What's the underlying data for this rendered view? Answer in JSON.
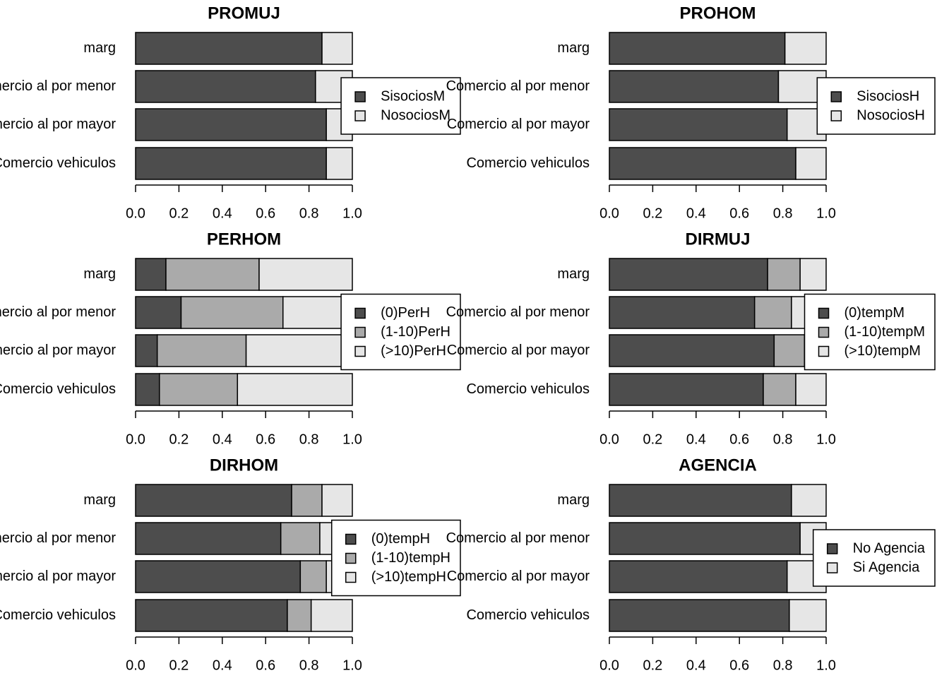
{
  "chart_data": [
    {
      "type": "bar",
      "title": "PROMUJ",
      "categories": [
        "marg",
        "Comercio al por menor",
        "Comercio al por mayor",
        "Comercio vehiculos"
      ],
      "series": [
        {
          "name": "SisociosM",
          "color": "#4d4d4d",
          "values": [
            0.86,
            0.83,
            0.88,
            0.88
          ]
        },
        {
          "name": "NosociosM",
          "color": "#e6e6e6",
          "values": [
            0.14,
            0.17,
            0.12,
            0.12
          ]
        }
      ],
      "xlim": [
        0,
        1
      ],
      "xticks": [
        {
          "value": 0,
          "label": "0.0"
        },
        0.2,
        0.4,
        0.6,
        0.8,
        {
          "value": 1,
          "label": "1.0"
        }
      ]
    },
    {
      "type": "bar",
      "title": "PROHOM",
      "categories": [
        "marg",
        "Comercio al por menor",
        "Comercio al por mayor",
        "Comercio vehiculos"
      ],
      "series": [
        {
          "name": "SisociosH",
          "color": "#4d4d4d",
          "values": [
            0.81,
            0.78,
            0.82,
            0.86
          ]
        },
        {
          "name": "NosociosH",
          "color": "#e6e6e6",
          "values": [
            0.19,
            0.22,
            0.18,
            0.14
          ]
        }
      ],
      "xlim": [
        0,
        1
      ],
      "xticks": [
        {
          "value": 0,
          "label": "0.0"
        },
        0.2,
        0.4,
        0.6,
        0.8,
        {
          "value": 1,
          "label": "1.0"
        }
      ]
    },
    {
      "type": "bar",
      "title": "PERHOM",
      "categories": [
        "marg",
        "Comercio al por menor",
        "Comercio al por mayor",
        "Comercio vehiculos"
      ],
      "series": [
        {
          "name": "(0)PerH",
          "color": "#4d4d4d",
          "values": [
            0.14,
            0.21,
            0.1,
            0.11
          ]
        },
        {
          "name": "(1-10)PerH",
          "color": "#aaaaaa",
          "values": [
            0.43,
            0.47,
            0.41,
            0.36
          ]
        },
        {
          "name": "(>10)PerH",
          "color": "#e6e6e6",
          "values": [
            0.43,
            0.32,
            0.49,
            0.53
          ]
        }
      ],
      "xlim": [
        0,
        1
      ],
      "xticks": [
        {
          "value": 0,
          "label": "0.0"
        },
        0.2,
        0.4,
        0.6,
        0.8,
        {
          "value": 1,
          "label": "1.0"
        }
      ]
    },
    {
      "type": "bar",
      "title": "DIRMUJ",
      "categories": [
        "marg",
        "Comercio al por menor",
        "Comercio al por mayor",
        "Comercio vehiculos"
      ],
      "series": [
        {
          "name": "(0)tempM",
          "color": "#4d4d4d",
          "values": [
            0.73,
            0.67,
            0.76,
            0.71
          ]
        },
        {
          "name": "(1-10)tempM",
          "color": "#aaaaaa",
          "values": [
            0.15,
            0.17,
            0.14,
            0.15
          ]
        },
        {
          "name": "(>10)tempM",
          "color": "#e6e6e6",
          "values": [
            0.12,
            0.16,
            0.1,
            0.14
          ]
        }
      ],
      "xlim": [
        0,
        1
      ],
      "xticks": [
        {
          "value": 0,
          "label": "0.0"
        },
        0.2,
        0.4,
        0.6,
        0.8,
        {
          "value": 1,
          "label": "1.0"
        }
      ]
    },
    {
      "type": "bar",
      "title": "DIRHOM",
      "categories": [
        "marg",
        "Comercio al por menor",
        "Comercio al por mayor",
        "Comercio vehiculos"
      ],
      "series": [
        {
          "name": "(0)tempH",
          "color": "#4d4d4d",
          "values": [
            0.72,
            0.67,
            0.76,
            0.7
          ]
        },
        {
          "name": "(1-10)tempH",
          "color": "#aaaaaa",
          "values": [
            0.14,
            0.18,
            0.12,
            0.11
          ]
        },
        {
          "name": "(>10)tempH",
          "color": "#e6e6e6",
          "values": [
            0.14,
            0.15,
            0.12,
            0.19
          ]
        }
      ],
      "xlim": [
        0,
        1
      ],
      "xticks": [
        {
          "value": 0,
          "label": "0.0"
        },
        0.2,
        0.4,
        0.6,
        0.8,
        {
          "value": 1,
          "label": "1.0"
        }
      ]
    },
    {
      "type": "bar",
      "title": "AGENCIA",
      "categories": [
        "marg",
        "Comercio al por menor",
        "Comercio al por mayor",
        "Comercio vehiculos"
      ],
      "series": [
        {
          "name": "No Agencia",
          "color": "#4d4d4d",
          "values": [
            0.84,
            0.88,
            0.82,
            0.83
          ]
        },
        {
          "name": "Si Agencia",
          "color": "#e6e6e6",
          "values": [
            0.16,
            0.12,
            0.18,
            0.17
          ]
        }
      ],
      "xlim": [
        0,
        1
      ],
      "xticks": [
        {
          "value": 0,
          "label": "0.0"
        },
        0.2,
        0.4,
        0.6,
        0.8,
        {
          "value": 1,
          "label": "1.0"
        }
      ]
    }
  ]
}
